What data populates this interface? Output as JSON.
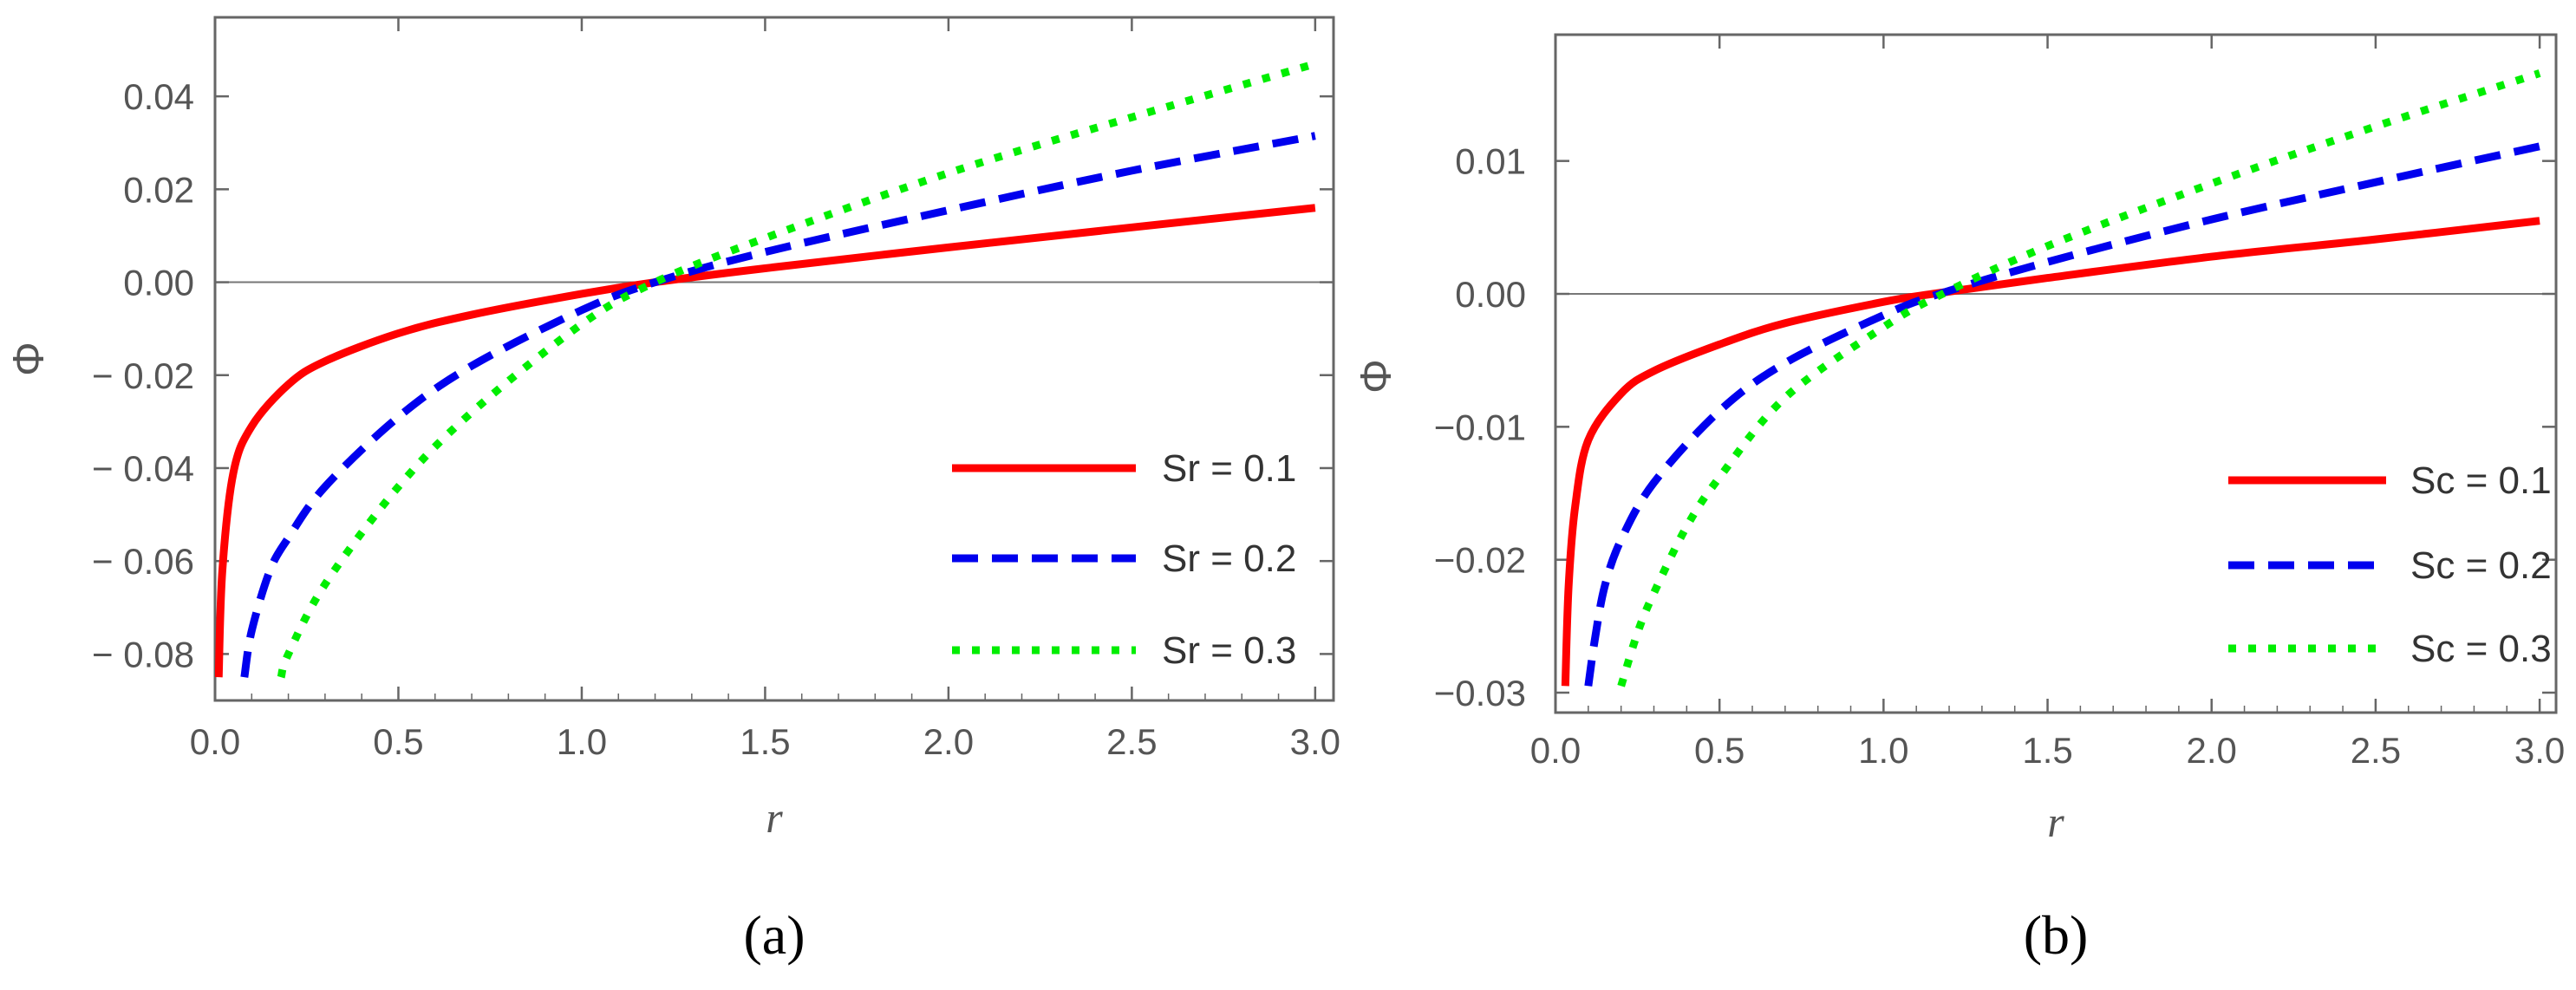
{
  "chart_data": [
    {
      "type": "line",
      "panel_label": "(a)",
      "xlabel": "r",
      "ylabel": "Φ",
      "xlim": [
        0.0,
        3.05
      ],
      "ylim": [
        -0.09,
        0.057
      ],
      "xticks": [
        {
          "v": 0.0,
          "label": "0.0"
        },
        {
          "v": 0.5,
          "label": "0.5"
        },
        {
          "v": 1.0,
          "label": "1.0"
        },
        {
          "v": 1.5,
          "label": "1.5"
        },
        {
          "v": 2.0,
          "label": "2.0"
        },
        {
          "v": 2.5,
          "label": "2.5"
        },
        {
          "v": 3.0,
          "label": "3.0"
        }
      ],
      "yticks": [
        {
          "v": 0.04,
          "label": "0.04"
        },
        {
          "v": 0.02,
          "label": "0.02"
        },
        {
          "v": 0.0,
          "label": "0.00"
        },
        {
          "v": -0.02,
          "label": "− 0.02"
        },
        {
          "v": -0.04,
          "label": "− 0.04"
        },
        {
          "v": -0.06,
          "label": "− 0.06"
        },
        {
          "v": -0.08,
          "label": "− 0.08"
        }
      ],
      "zero_line": true,
      "series": [
        {
          "name": "Sr = 0.1",
          "color": "#ff0000",
          "dash": "solid",
          "x": [
            0.01,
            0.02,
            0.05,
            0.1,
            0.2,
            0.3,
            0.5,
            0.7,
            1.0,
            1.2,
            1.5,
            2.0,
            2.5,
            3.0
          ],
          "y": [
            -0.085,
            -0.062,
            -0.041,
            -0.031,
            -0.022,
            -0.017,
            -0.011,
            -0.007,
            -0.0025,
            0.0,
            0.003,
            0.0075,
            0.0118,
            0.016
          ]
        },
        {
          "name": "Sr = 0.2",
          "color": "#0000ee",
          "dash": "dashed",
          "x": [
            0.08,
            0.1,
            0.15,
            0.2,
            0.3,
            0.5,
            0.7,
            1.0,
            1.2,
            1.5,
            2.0,
            2.5,
            3.0
          ],
          "y": [
            -0.085,
            -0.075,
            -0.062,
            -0.055,
            -0.044,
            -0.029,
            -0.018,
            -0.006,
            0.0,
            0.0065,
            0.0155,
            0.024,
            0.0315
          ]
        },
        {
          "name": "Sr = 0.3",
          "color": "#00ee00",
          "dash": "dotted",
          "x": [
            0.18,
            0.2,
            0.3,
            0.5,
            0.7,
            1.0,
            1.2,
            1.5,
            2.0,
            2.5,
            3.0
          ],
          "y": [
            -0.085,
            -0.08,
            -0.065,
            -0.044,
            -0.028,
            -0.009,
            0.0,
            0.0095,
            0.0235,
            0.0355,
            0.047
          ]
        }
      ]
    },
    {
      "type": "line",
      "panel_label": "(b)",
      "xlabel": "r",
      "ylabel": "Φ",
      "xlim": [
        0.0,
        3.05
      ],
      "ylim": [
        -0.0315,
        0.0195
      ],
      "xticks": [
        {
          "v": 0.0,
          "label": "0.0"
        },
        {
          "v": 0.5,
          "label": "0.5"
        },
        {
          "v": 1.0,
          "label": "1.0"
        },
        {
          "v": 1.5,
          "label": "1.5"
        },
        {
          "v": 2.0,
          "label": "2.0"
        },
        {
          "v": 2.5,
          "label": "2.5"
        },
        {
          "v": 3.0,
          "label": "3.0"
        }
      ],
      "yticks": [
        {
          "v": 0.01,
          "label": "0.01"
        },
        {
          "v": 0.0,
          "label": "0.00"
        },
        {
          "v": -0.01,
          "label": "−0.01"
        },
        {
          "v": -0.02,
          "label": "−0.02"
        },
        {
          "v": -0.03,
          "label": "−0.03"
        }
      ],
      "zero_line": true,
      "series": [
        {
          "name": "Sc = 0.1",
          "color": "#ff0000",
          "dash": "solid",
          "x": [
            0.03,
            0.04,
            0.06,
            0.1,
            0.2,
            0.3,
            0.5,
            0.7,
            1.0,
            1.15,
            1.5,
            2.0,
            2.5,
            3.0
          ],
          "y": [
            -0.0295,
            -0.022,
            -0.016,
            -0.011,
            -0.0075,
            -0.0058,
            -0.0038,
            -0.0022,
            -0.0006,
            0.0,
            0.0012,
            0.0028,
            0.0041,
            0.0055
          ]
        },
        {
          "name": "Sc = 0.2",
          "color": "#0000ee",
          "dash": "dashed",
          "x": [
            0.1,
            0.12,
            0.15,
            0.2,
            0.3,
            0.5,
            0.7,
            1.0,
            1.17,
            1.5,
            2.0,
            2.5,
            3.0
          ],
          "y": [
            -0.0295,
            -0.026,
            -0.022,
            -0.0185,
            -0.0142,
            -0.0088,
            -0.0052,
            -0.0016,
            0.0,
            0.0024,
            0.0056,
            0.0084,
            0.0111
          ]
        },
        {
          "name": "Sc = 0.3",
          "color": "#00ee00",
          "dash": "dotted",
          "x": [
            0.2,
            0.25,
            0.3,
            0.4,
            0.5,
            0.7,
            1.0,
            1.18,
            1.5,
            2.0,
            2.5,
            3.0
          ],
          "y": [
            -0.0295,
            -0.0255,
            -0.0225,
            -0.0175,
            -0.0138,
            -0.0078,
            -0.0025,
            0.0,
            0.0036,
            0.0083,
            0.0126,
            0.0166
          ]
        }
      ]
    }
  ]
}
